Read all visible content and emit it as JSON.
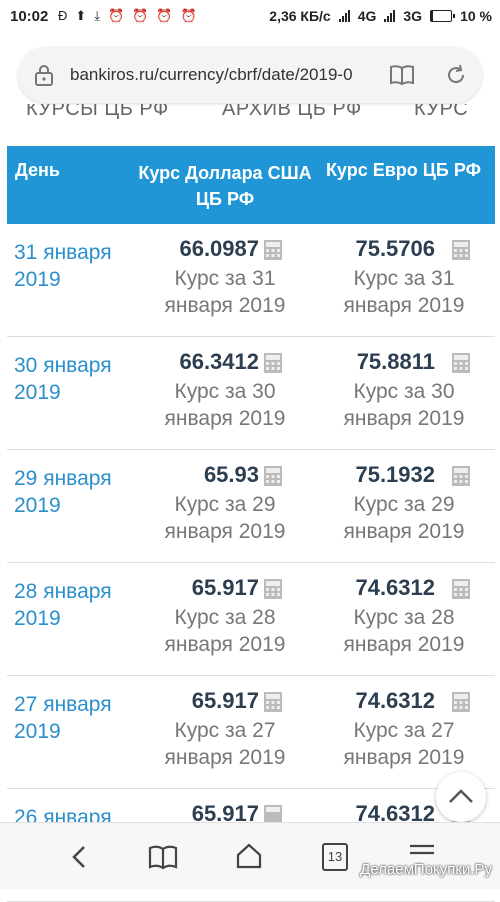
{
  "status_bar": {
    "time": "10:02",
    "speed": "2,36 КБ/с",
    "net1": "4G",
    "net2": "3G",
    "battery": "10 %",
    "battery_level": 0.1
  },
  "browser": {
    "url": "bankiros.ru/currency/cbrf/date/2019-0"
  },
  "nav_tabs": [
    "КУРСЫ ЦБ РФ",
    "АРХИВ ЦБ РФ",
    "КУРС"
  ],
  "table": {
    "headers": {
      "day": "День",
      "usd": "Курс Доллара США ЦБ РФ",
      "eur": "Курс Евро ЦБ РФ"
    },
    "rows": [
      {
        "day": "31 января 2019",
        "usd": "66.0987",
        "usd_note": "Курс за 31 января 2019",
        "eur": "75.5706",
        "eur_note": "Курс за 31 января 2019"
      },
      {
        "day": "30 января 2019",
        "usd": "66.3412",
        "usd_note": "Курс за 30 января 2019",
        "eur": "75.8811",
        "eur_note": "Курс за 30 января 2019"
      },
      {
        "day": "29 января 2019",
        "usd": "65.93",
        "usd_note": "Курс за 29 января 2019",
        "eur": "75.1932",
        "eur_note": "Курс за 29 января 2019"
      },
      {
        "day": "28 января 2019",
        "usd": "65.917",
        "usd_note": "Курс за 28 января 2019",
        "eur": "74.6312",
        "eur_note": "Курс за 28 января 2019"
      },
      {
        "day": "27 января 2019",
        "usd": "65.917",
        "usd_note": "Курс за 27 января 2019",
        "eur": "74.6312",
        "eur_note": "Курс за 27 января 2019"
      },
      {
        "day": "26 января",
        "usd": "65.917",
        "usd_note": "",
        "eur": "74.6312",
        "eur_note": ""
      }
    ]
  },
  "bottom_bar": {
    "tab_count": "13",
    "watermark": "ДелаемПокупки.Ру"
  }
}
